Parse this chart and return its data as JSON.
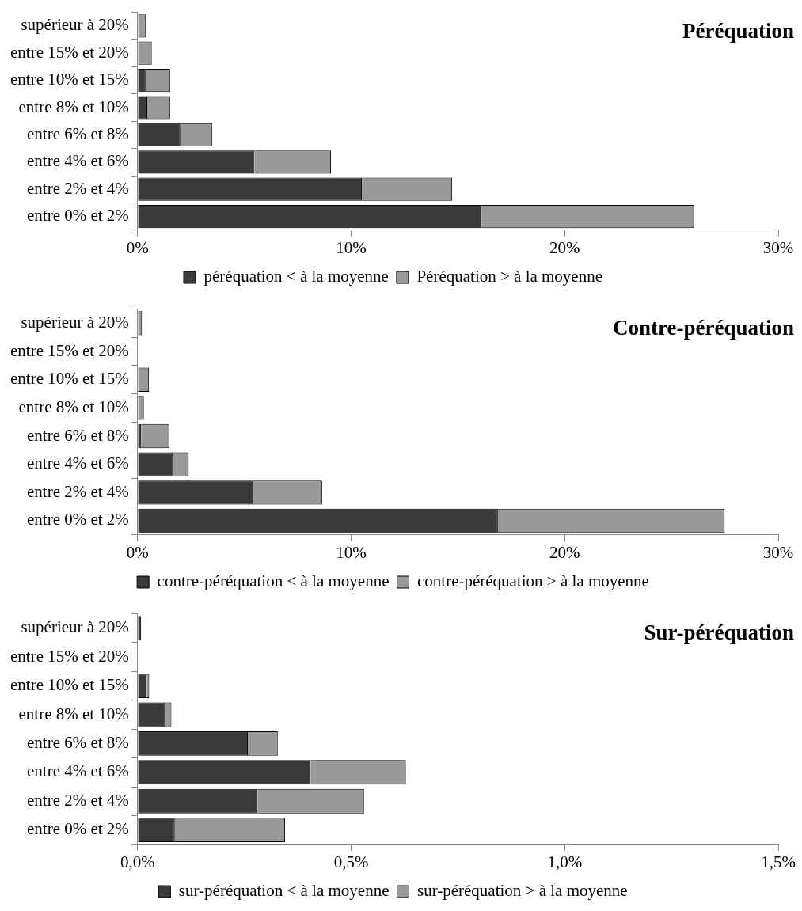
{
  "chart_data": [
    {
      "type": "bar",
      "title": "Péréquation",
      "orientation": "horizontal",
      "stacked": true,
      "legend": "bottom",
      "grid": false,
      "categories": [
        "supérieur à 20%",
        "entre 15% et 20%",
        "entre 10% et 15%",
        "entre 8% et 10%",
        "entre 6% et 8%",
        "entre 4% et 6%",
        "entre 2% et 4%",
        "entre 0% et 2%"
      ],
      "xlim": [
        0,
        30
      ],
      "xticks": [
        {
          "value": 0,
          "label": "0%"
        },
        {
          "value": 10,
          "label": "10%"
        },
        {
          "value": 20,
          "label": "20%"
        },
        {
          "value": 30,
          "label": "30%"
        }
      ],
      "series": [
        {
          "name": "péréquation < à la moyenne",
          "color": "#3a3a3a",
          "values": [
            0,
            0,
            0.37,
            0.45,
            2.0,
            5.47,
            10.5,
            16.1
          ]
        },
        {
          "name": "Péréquation > à la moyenne",
          "color": "#999999",
          "values": [
            0.37,
            0.66,
            1.15,
            1.07,
            1.5,
            3.58,
            4.23,
            9.95
          ]
        }
      ]
    },
    {
      "type": "bar",
      "title": "Contre-péréquation",
      "orientation": "horizontal",
      "stacked": true,
      "legend": "bottom",
      "grid": false,
      "categories": [
        "supérieur à 20%",
        "entre 15% et 20%",
        "entre 10% et 15%",
        "entre 8% et 10%",
        "entre 6% et 8%",
        "entre 4% et 6%",
        "entre 2% et 4%",
        "entre 0% et 2%"
      ],
      "xlim": [
        0,
        30
      ],
      "xticks": [
        {
          "value": 0,
          "label": "0%"
        },
        {
          "value": 10,
          "label": "10%"
        },
        {
          "value": 20,
          "label": "20%"
        },
        {
          "value": 30,
          "label": "30%"
        }
      ],
      "series": [
        {
          "name": "contre-péréquation < à la moyenne",
          "color": "#3a3a3a",
          "values": [
            0,
            0,
            0,
            0,
            0.16,
            1.65,
            5.39,
            16.87
          ]
        },
        {
          "name": "contre-péréquation > à la moyenne",
          "color": "#999999",
          "values": [
            0.2,
            0,
            0.53,
            0.29,
            1.32,
            0.74,
            3.25,
            10.62
          ]
        }
      ]
    },
    {
      "type": "bar",
      "title": "Sur-péréquation",
      "orientation": "horizontal",
      "stacked": true,
      "legend": "bottom",
      "grid": false,
      "categories": [
        "supérieur à 20%",
        "entre 15% et 20%",
        "entre 10% et 15%",
        "entre 8% et 10%",
        "entre 6% et 8%",
        "entre 4% et 6%",
        "entre 2% et 4%",
        "entre 0% et 2%"
      ],
      "xlim": [
        0,
        1.5
      ],
      "xticks": [
        {
          "value": 0,
          "label": "0,0%"
        },
        {
          "value": 0.5,
          "label": "0,5%"
        },
        {
          "value": 1,
          "label": "1,0%"
        },
        {
          "value": 1.5,
          "label": "1,5%"
        }
      ],
      "series": [
        {
          "name": "sur-péréquation < à la moyenne",
          "color": "#3a3a3a",
          "values": [
            0.008,
            0,
            0.021,
            0.064,
            0.258,
            0.405,
            0.281,
            0.087
          ]
        },
        {
          "name": "sur-péréquation > à la moyenne",
          "color": "#999999",
          "values": [
            0,
            0,
            0.006,
            0.015,
            0.07,
            0.223,
            0.249,
            0.258
          ]
        }
      ]
    }
  ]
}
